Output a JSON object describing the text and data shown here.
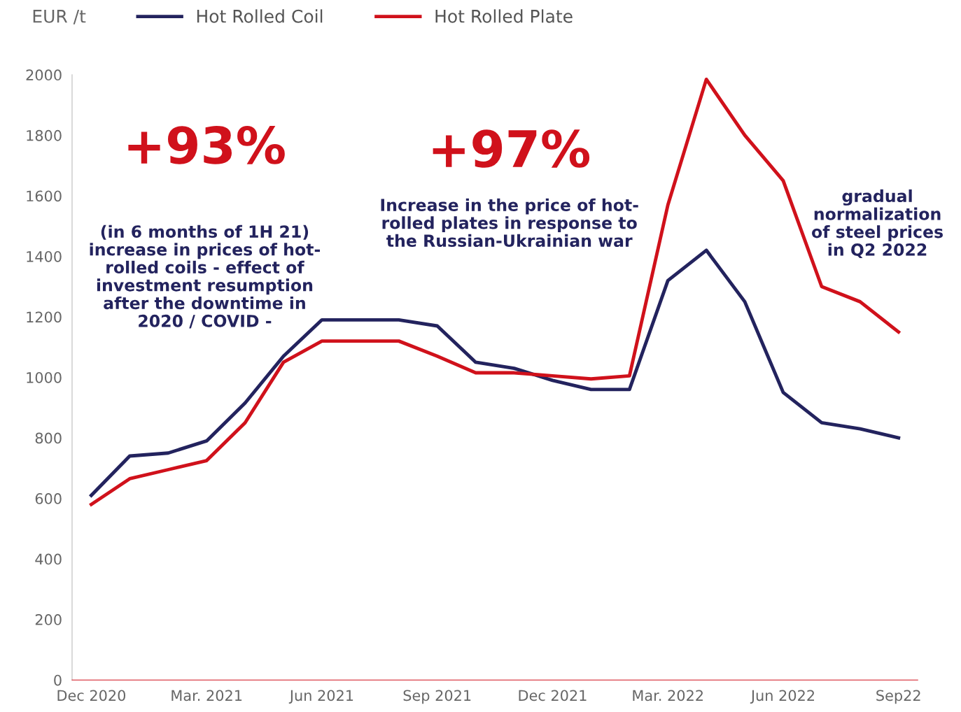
{
  "chart_data": {
    "type": "line",
    "ylabel": "EUR /t",
    "categories": [
      "Dec 2020",
      null,
      null,
      "Mar. 2021",
      null,
      null,
      "Jun 2021",
      null,
      null,
      "Sep 2021",
      null,
      null,
      "Dec 2021",
      null,
      null,
      "Mar. 2022",
      null,
      null,
      "Jun 2022",
      null,
      null,
      "Sep22"
    ],
    "series": [
      {
        "name": "Hot Rolled Coil",
        "color": "#23235e",
        "values": [
          610,
          740,
          750,
          790,
          915,
          1070,
          1190,
          1190,
          1190,
          1170,
          1050,
          1030,
          990,
          960,
          960,
          1320,
          1420,
          1250,
          950,
          850,
          830,
          800
        ]
      },
      {
        "name": "Hot Rolled Plate",
        "color": "#d0111b",
        "values": [
          580,
          665,
          695,
          725,
          850,
          1050,
          1120,
          1120,
          1120,
          1070,
          1015,
          1015,
          1005,
          995,
          1005,
          1570,
          1985,
          1800,
          1650,
          1300,
          1250,
          1150
        ]
      }
    ],
    "ylim": [
      0,
      2000
    ],
    "yticks": [
      0,
      200,
      400,
      600,
      800,
      1000,
      1200,
      1400,
      1600,
      1800,
      2000
    ],
    "grid": false,
    "legend": "top",
    "marker": "none",
    "line_style": "solid",
    "annotations": [
      "+93%",
      "(in 6 months of 1H 21)\nincrease in prices of hot-\nrolled coils - effect of\ninvestment resumption\nafter the downtime in\n2020 / COVID -",
      "+97%",
      "Increase in the price of hot-\nrolled plates in response to\nthe Russian-Ukrainian war",
      "gradual\nnormalization\nof steel prices\nin Q2 2022"
    ]
  }
}
